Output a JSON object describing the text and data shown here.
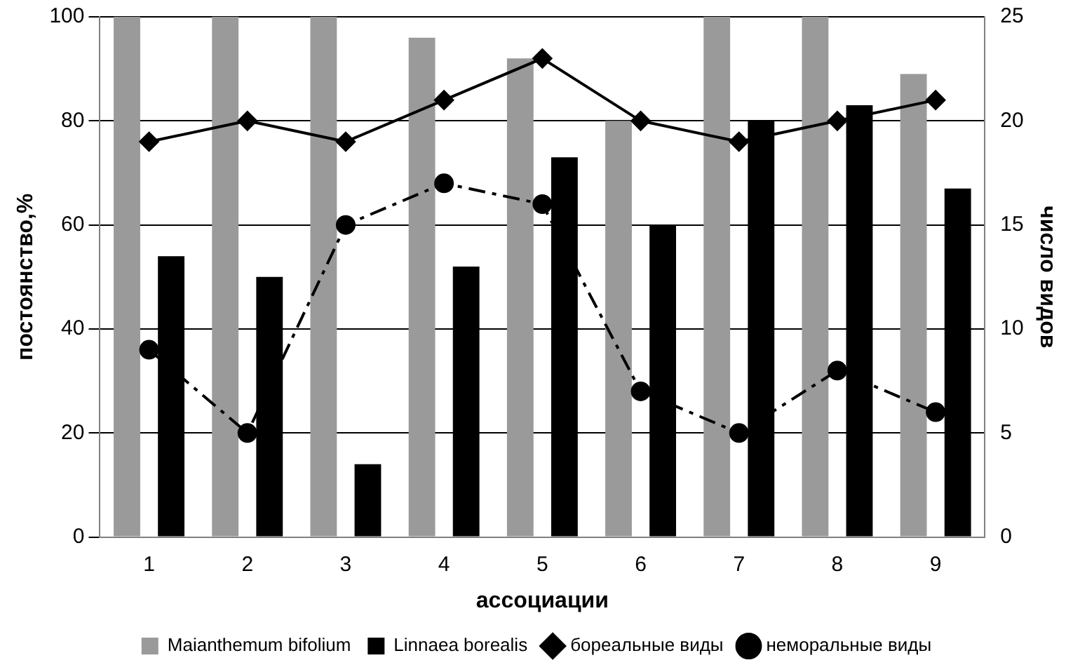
{
  "chart_data": {
    "type": "bar",
    "xlabel": "ассоциации",
    "ylabel": "постоянство,%",
    "y2label": "число видов",
    "categories": [
      "1",
      "2",
      "3",
      "4",
      "5",
      "6",
      "7",
      "8",
      "9"
    ],
    "series": [
      {
        "name": "Maianthemum bifolium",
        "color": "#9a9a9a",
        "values": [
          100,
          100,
          100,
          96,
          92,
          80,
          100,
          100,
          89
        ]
      },
      {
        "name": "Linnaea borealis",
        "color": "#000000",
        "values": [
          54,
          50,
          14,
          52,
          73,
          60,
          80,
          83,
          67
        ]
      },
      {
        "name": "бореальные виды",
        "type": "line",
        "axis": "y2",
        "color": "#000000",
        "marker": "diamond",
        "line_style": "solid",
        "values": [
          19,
          20,
          19,
          21,
          23,
          20,
          19,
          20,
          21
        ]
      },
      {
        "name": "неморальные виды",
        "type": "line",
        "axis": "y2",
        "color": "#000000",
        "marker": "circle",
        "line_style": "dashed",
        "values": [
          9,
          5,
          15,
          17,
          16,
          7,
          5,
          8,
          6
        ]
      }
    ],
    "ylim": [
      0,
      100
    ],
    "yticks": [
      0,
      20,
      40,
      60,
      80,
      100
    ],
    "y2lim": [
      0,
      25
    ],
    "y2ticks": [
      0,
      5,
      10,
      15,
      20,
      25
    ],
    "grid": "y",
    "legend": "bottom"
  }
}
